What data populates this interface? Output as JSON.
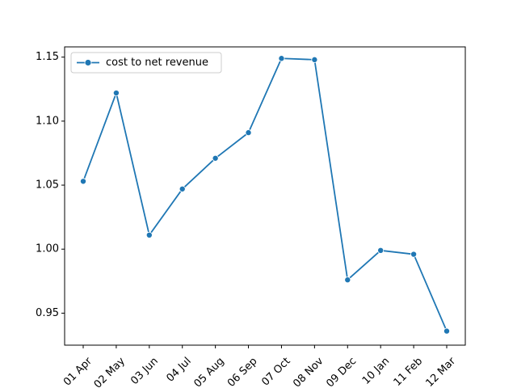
{
  "chart_data": {
    "type": "line",
    "categories": [
      "01 Apr",
      "02 May",
      "03 Jun",
      "04 Jul",
      "05 Aug",
      "06 Sep",
      "07 Oct",
      "08 Nov",
      "09 Dec",
      "10 Jan",
      "11 Feb",
      "12 Mar"
    ],
    "series": [
      {
        "name": "cost to net revenue",
        "values": [
          1.053,
          1.122,
          1.011,
          1.047,
          1.071,
          1.091,
          1.149,
          1.148,
          0.976,
          0.999,
          0.996,
          0.936
        ],
        "color": "#1f77b4"
      }
    ],
    "yticks": [
      0.95,
      1.0,
      1.05,
      1.1,
      1.15
    ],
    "ytick_labels": [
      "0.95",
      "1.00",
      "1.05",
      "1.10",
      "1.15"
    ],
    "ylim": [
      0.925,
      1.158
    ],
    "title": "",
    "xlabel": "",
    "ylabel": "",
    "grid": false,
    "legend_position": "top-left"
  }
}
